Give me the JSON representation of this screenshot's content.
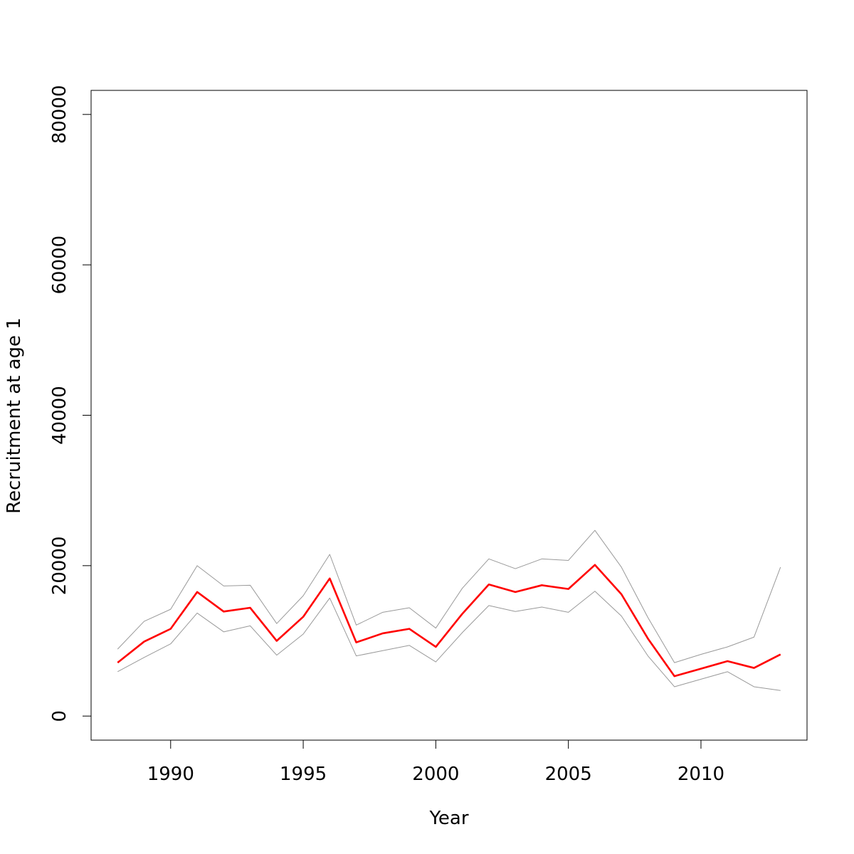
{
  "chart_data": {
    "type": "line",
    "title": "",
    "xlabel": "Year",
    "ylabel": "Recruitment at age 1",
    "xlim": [
      1987.0,
      2014.0
    ],
    "ylim": [
      -3200,
      83200
    ],
    "x_ticks": [
      1990,
      1995,
      2000,
      2005,
      2010
    ],
    "y_ticks": [
      0,
      20000,
      40000,
      60000,
      80000
    ],
    "grid": false,
    "legend": "none",
    "x": [
      1988,
      1989,
      1990,
      1991,
      1992,
      1993,
      1994,
      1995,
      1996,
      1997,
      1998,
      1999,
      2000,
      2001,
      2002,
      2003,
      2004,
      2005,
      2006,
      2007,
      2008,
      2009,
      2010,
      2011,
      2012,
      2013
    ],
    "series": [
      {
        "role": "estimate",
        "color": "#ff0000",
        "values": [
          7100,
          9900,
          11600,
          16500,
          13900,
          14400,
          10000,
          13200,
          18300,
          9800,
          11000,
          11600,
          9200,
          13600,
          17500,
          16500,
          17400,
          16900,
          20100,
          16200,
          10300,
          5300,
          6300,
          7300,
          6400,
          8200
        ]
      },
      {
        "role": "upper",
        "color": "#999999",
        "values": [
          8900,
          12600,
          14200,
          20000,
          17300,
          17400,
          12300,
          16000,
          21500,
          12100,
          13800,
          14400,
          11700,
          17000,
          20900,
          19600,
          20900,
          20700,
          24700,
          19800,
          13100,
          7100,
          8200,
          9200,
          10500,
          19800
        ]
      },
      {
        "role": "lower",
        "color": "#999999",
        "values": [
          5900,
          7800,
          9600,
          13700,
          11200,
          12000,
          8100,
          10900,
          15700,
          8000,
          8700,
          9400,
          7200,
          11100,
          14700,
          13900,
          14500,
          13800,
          16600,
          13300,
          8000,
          3900,
          4900,
          5900,
          3900,
          3400
        ]
      }
    ]
  }
}
